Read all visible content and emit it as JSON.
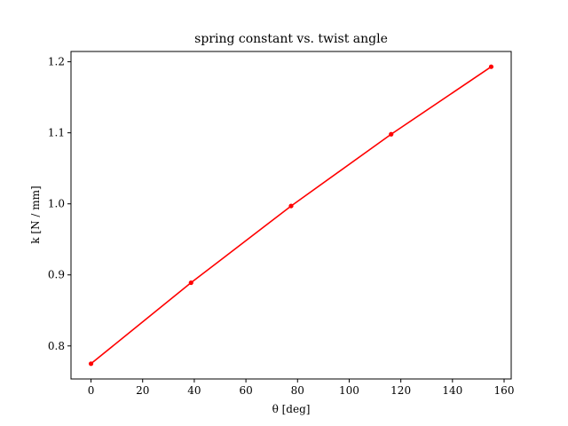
{
  "chart_data": {
    "type": "line",
    "title": "spring constant vs. twist angle",
    "xlabel": "θ [deg]",
    "ylabel": "k [N / mm]",
    "xlim": [
      -7.75,
      162.75
    ],
    "ylim": [
      0.7535,
      1.2145
    ],
    "xticks": [
      0,
      20,
      40,
      60,
      80,
      100,
      120,
      140,
      160
    ],
    "xtick_labels": [
      "0",
      "20",
      "40",
      "60",
      "80",
      "100",
      "120",
      "140",
      "160"
    ],
    "yticks": [
      0.8,
      0.9,
      1.0,
      1.1,
      1.2
    ],
    "ytick_labels": [
      "0.8",
      "0.9",
      "1.0",
      "1.1",
      "1.2"
    ],
    "grid": false,
    "series": [
      {
        "color": "#ff0000",
        "marker": "circle",
        "x": [
          0,
          38.75,
          77.5,
          116.25,
          155
        ],
        "y": [
          0.775,
          0.889,
          0.997,
          1.098,
          1.193
        ]
      }
    ]
  }
}
